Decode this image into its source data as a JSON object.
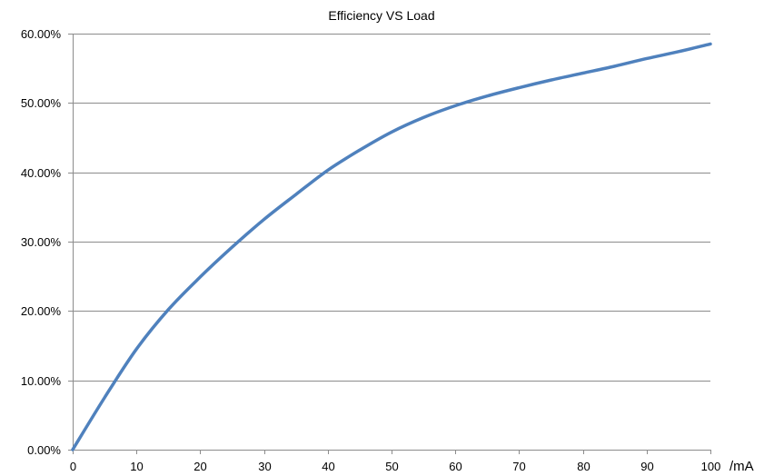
{
  "chart_data": {
    "type": "line",
    "title": "Efficiency VS Load",
    "xlabel": "/mA",
    "ylabel": "",
    "xlim": [
      0,
      100
    ],
    "ylim": [
      0,
      60
    ],
    "x_ticks": [
      0,
      10,
      20,
      30,
      40,
      50,
      60,
      70,
      80,
      90,
      100
    ],
    "x_tick_labels": [
      "0",
      "10",
      "20",
      "30",
      "40",
      "50",
      "60",
      "70",
      "80",
      "90",
      "100"
    ],
    "y_ticks": [
      0,
      10,
      20,
      30,
      40,
      50,
      60
    ],
    "y_tick_labels": [
      "0.00%",
      "10.00%",
      "20.00%",
      "30.00%",
      "40.00%",
      "50.00%",
      "60.00%"
    ],
    "grid": "horizontal",
    "legend": "none",
    "series": [
      {
        "color": "#4F81BD",
        "x": [
          0,
          5,
          10,
          15,
          20,
          25,
          30,
          35,
          40,
          45,
          50,
          55,
          60,
          65,
          70,
          75,
          80,
          85,
          90,
          95,
          100
        ],
        "y": [
          0,
          7.5,
          14.5,
          20.2,
          24.9,
          29.2,
          33.2,
          36.8,
          40.3,
          43.2,
          45.8,
          47.9,
          49.6,
          51.0,
          52.2,
          53.3,
          54.3,
          55.3,
          56.4,
          57.4,
          58.5
        ]
      }
    ]
  }
}
